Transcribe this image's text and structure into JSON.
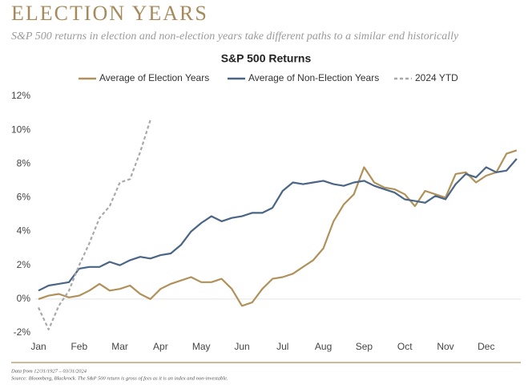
{
  "chart_data": {
    "type": "line",
    "title": "ELECTION YEARS",
    "subtitle": "S&P 500 returns in election and non-election years take different paths to a similar end historically",
    "chart_title": "S&P 500 Returns",
    "notes": [
      "Data from 12/31/1927 – 03/31/2024",
      "Source: Bloomberg, Blackrock. The S&P 500 return is gross of fees as it is an index and non-investable."
    ],
    "categories": [
      "Jan",
      null,
      null,
      null,
      "Feb",
      null,
      null,
      null,
      "Mar",
      null,
      null,
      null,
      "Apr",
      null,
      null,
      null,
      "May",
      null,
      null,
      null,
      "Jun",
      null,
      null,
      null,
      "Jul",
      null,
      null,
      null,
      "Aug",
      null,
      null,
      null,
      "Sep",
      null,
      null,
      null,
      "Oct",
      null,
      null,
      null,
      "Nov",
      null,
      null,
      null,
      "Dec",
      null,
      null,
      null
    ],
    "series": [
      {
        "name": "Average of Election Years",
        "color": "#b0915a",
        "dash": false,
        "values": [
          0,
          0.2,
          0.3,
          0.1,
          0.2,
          0.5,
          0.9,
          0.5,
          0.6,
          0.8,
          0.3,
          0.0,
          0.6,
          0.9,
          1.1,
          1.3,
          1.0,
          1.0,
          1.2,
          0.6,
          -0.4,
          -0.2,
          0.6,
          1.2,
          1.3,
          1.5,
          1.9,
          2.3,
          3.0,
          4.6,
          5.6,
          6.2,
          7.8,
          6.9,
          6.6,
          6.5,
          6.2,
          5.5,
          6.4,
          6.2,
          6.0,
          7.4,
          7.5,
          6.9,
          7.3,
          7.5,
          8.6,
          8.8
        ]
      },
      {
        "name": "Average of Non-Election Years",
        "color": "#4a6585",
        "dash": false,
        "values": [
          0.5,
          0.8,
          0.9,
          1.0,
          1.8,
          1.9,
          1.9,
          2.2,
          2.0,
          2.3,
          2.5,
          2.4,
          2.6,
          2.7,
          3.2,
          4.0,
          4.5,
          4.9,
          4.6,
          4.8,
          4.9,
          5.1,
          5.1,
          5.4,
          6.4,
          6.9,
          6.8,
          6.9,
          7.0,
          6.8,
          6.7,
          6.9,
          7.0,
          6.7,
          6.5,
          6.3,
          5.9,
          5.8,
          5.7,
          6.1,
          5.9,
          6.8,
          7.4,
          7.2,
          7.8,
          7.5,
          7.6,
          8.3
        ]
      },
      {
        "name": "2024 YTD",
        "color": "#a8a8a8",
        "dash": true,
        "values": [
          -0.5,
          -1.8,
          -0.4,
          0.5,
          2.0,
          3.3,
          4.8,
          5.5,
          6.9,
          7.1,
          8.7,
          10.6,
          null,
          null,
          null,
          null,
          null,
          null,
          null,
          null,
          null,
          null,
          null,
          null,
          null,
          null,
          null,
          null,
          null,
          null,
          null,
          null,
          null,
          null,
          null,
          null,
          null,
          null,
          null,
          null,
          null,
          null,
          null,
          null,
          null,
          null,
          null,
          null
        ]
      }
    ],
    "ylim": [
      -2,
      12
    ],
    "yticks": [
      {
        "value": -2,
        "label": "-2%"
      },
      {
        "value": 0,
        "label": "0%"
      },
      {
        "value": 2,
        "label": "2%"
      },
      {
        "value": 4,
        "label": "4%"
      },
      {
        "value": 6,
        "label": "6%"
      },
      {
        "value": 8,
        "label": "8%"
      },
      {
        "value": 10,
        "label": "10%"
      },
      {
        "value": 12,
        "label": "12%"
      }
    ],
    "grid": false
  }
}
